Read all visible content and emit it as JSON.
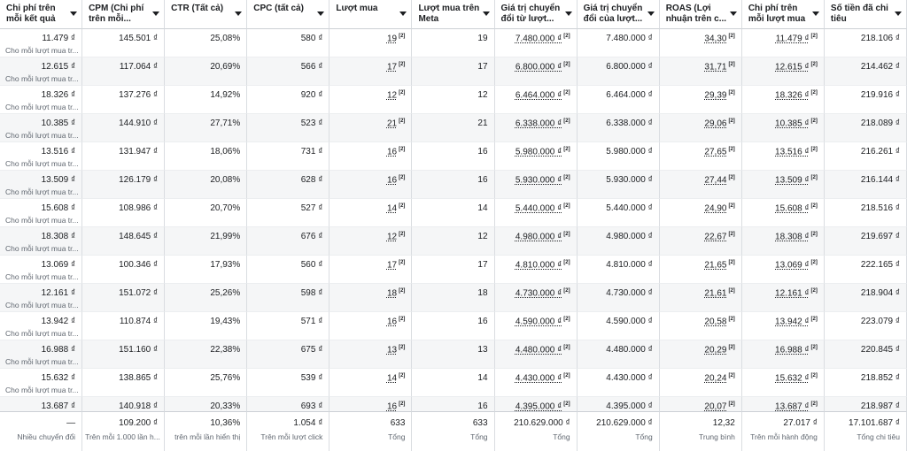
{
  "table": {
    "columns": [
      "Chi phí trên mỗi kết quả",
      "CPM (Chi phí trên mỗi...",
      "CTR (Tất cả)",
      "CPC (tất cả)",
      "Lượt mua",
      "Lượt mua trên Meta",
      "Giá trị chuyển đổi từ lượt...",
      "Giá trị chuyển đổi của lượt...",
      "ROAS (Lợi nhuận trên c...",
      "Chi phí trên mỗi lượt mua",
      "Số tiền đã chi tiêu"
    ],
    "marker": "[2]",
    "rows": [
      {
        "cells": [
          "11.479 ₫",
          "145.501 ₫",
          "25,08%",
          "580 ₫",
          "19",
          "19",
          "7.480.000 ₫",
          "7.480.000 ₫",
          "34,30",
          "11.479 ₫",
          "218.106 ₫"
        ],
        "sub": "Cho mỗi lượt mua tr..."
      },
      {
        "cells": [
          "12.615 ₫",
          "117.064 ₫",
          "20,69%",
          "566 ₫",
          "17",
          "17",
          "6.800.000 ₫",
          "6.800.000 ₫",
          "31,71",
          "12.615 ₫",
          "214.462 ₫"
        ],
        "sub": "Cho mỗi lượt mua tr..."
      },
      {
        "cells": [
          "18.326 ₫",
          "137.276 ₫",
          "14,92%",
          "920 ₫",
          "12",
          "12",
          "6.464.000 ₫",
          "6.464.000 ₫",
          "29,39",
          "18.326 ₫",
          "219.916 ₫"
        ],
        "sub": "Cho mỗi lượt mua tr..."
      },
      {
        "cells": [
          "10.385 ₫",
          "144.910 ₫",
          "27,71%",
          "523 ₫",
          "21",
          "21",
          "6.338.000 ₫",
          "6.338.000 ₫",
          "29,06",
          "10.385 ₫",
          "218.089 ₫"
        ],
        "sub": "Cho mỗi lượt mua tr..."
      },
      {
        "cells": [
          "13.516 ₫",
          "131.947 ₫",
          "18,06%",
          "731 ₫",
          "16",
          "16",
          "5.980.000 ₫",
          "5.980.000 ₫",
          "27,65",
          "13.516 ₫",
          "216.261 ₫"
        ],
        "sub": "Cho mỗi lượt mua tr..."
      },
      {
        "cells": [
          "13.509 ₫",
          "126.179 ₫",
          "20,08%",
          "628 ₫",
          "16",
          "16",
          "5.930.000 ₫",
          "5.930.000 ₫",
          "27,44",
          "13.509 ₫",
          "216.144 ₫"
        ],
        "sub": "Cho mỗi lượt mua tr..."
      },
      {
        "cells": [
          "15.608 ₫",
          "108.986 ₫",
          "20,70%",
          "527 ₫",
          "14",
          "14",
          "5.440.000 ₫",
          "5.440.000 ₫",
          "24,90",
          "15.608 ₫",
          "218.516 ₫"
        ],
        "sub": "Cho mỗi lượt mua tr..."
      },
      {
        "cells": [
          "18.308 ₫",
          "148.645 ₫",
          "21,99%",
          "676 ₫",
          "12",
          "12",
          "4.980.000 ₫",
          "4.980.000 ₫",
          "22,67",
          "18.308 ₫",
          "219.697 ₫"
        ],
        "sub": "Cho mỗi lượt mua tr..."
      },
      {
        "cells": [
          "13.069 ₫",
          "100.346 ₫",
          "17,93%",
          "560 ₫",
          "17",
          "17",
          "4.810.000 ₫",
          "4.810.000 ₫",
          "21,65",
          "13.069 ₫",
          "222.165 ₫"
        ],
        "sub": "Cho mỗi lượt mua tr..."
      },
      {
        "cells": [
          "12.161 ₫",
          "151.072 ₫",
          "25,26%",
          "598 ₫",
          "18",
          "18",
          "4.730.000 ₫",
          "4.730.000 ₫",
          "21,61",
          "12.161 ₫",
          "218.904 ₫"
        ],
        "sub": "Cho mỗi lượt mua tr..."
      },
      {
        "cells": [
          "13.942 ₫",
          "110.874 ₫",
          "19,43%",
          "571 ₫",
          "16",
          "16",
          "4.590.000 ₫",
          "4.590.000 ₫",
          "20,58",
          "13.942 ₫",
          "223.079 ₫"
        ],
        "sub": "Cho mỗi lượt mua tr..."
      },
      {
        "cells": [
          "16.988 ₫",
          "151.160 ₫",
          "22,38%",
          "675 ₫",
          "13",
          "13",
          "4.480.000 ₫",
          "4.480.000 ₫",
          "20,29",
          "16.988 ₫",
          "220.845 ₫"
        ],
        "sub": "Cho mỗi lượt mua tr..."
      },
      {
        "cells": [
          "15.632 ₫",
          "138.865 ₫",
          "25,76%",
          "539 ₫",
          "14",
          "14",
          "4.430.000 ₫",
          "4.430.000 ₫",
          "20,24",
          "15.632 ₫",
          "218.852 ₫"
        ],
        "sub": "Cho mỗi lượt mua tr..."
      },
      {
        "cells": [
          "13.687 ₫",
          "140.918 ₫",
          "20,33%",
          "693 ₫",
          "16",
          "16",
          "4.395.000 ₫",
          "4.395.000 ₫",
          "20,07",
          "13.687 ₫",
          "218.987 ₫"
        ]
      }
    ],
    "footer": [
      {
        "value": "—",
        "sub": "Nhiều chuyển đổi"
      },
      {
        "value": "109.200 ₫",
        "sub": "Trên mỗi 1.000 lần h..."
      },
      {
        "value": "10,36%",
        "sub": "trên mỗi lần hiển thị"
      },
      {
        "value": "1.054 ₫",
        "sub": "Trên mỗi lượt click"
      },
      {
        "value": "633",
        "sub": "Tổng"
      },
      {
        "value": "633",
        "sub": "Tổng"
      },
      {
        "value": "210.629.000 ₫",
        "sub": "Tổng"
      },
      {
        "value": "210.629.000 ₫",
        "sub": "Tổng"
      },
      {
        "value": "12,32",
        "sub": "Trung bình"
      },
      {
        "value": "27.017 ₫",
        "sub": "Trên mỗi hành động"
      },
      {
        "value": "17.101.687 ₫",
        "sub": "Tổng chi tiêu"
      }
    ]
  }
}
